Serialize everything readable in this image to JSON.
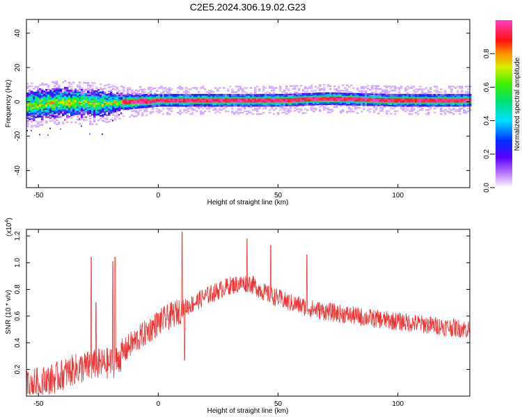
{
  "title": "C2E5.2024.306.19.02.G23",
  "colorbar": {
    "label": "Normalized spectral amplitude",
    "ticks": [
      "0.0",
      "0.2",
      "0.4",
      "0.6",
      "0.8"
    ],
    "range": [
      0,
      1
    ]
  },
  "chart_data": [
    {
      "type": "heatmap",
      "xlabel": "Height of straight line (km)",
      "ylabel": "Frequency (Hz)",
      "xlim": [
        -55,
        130
      ],
      "ylim": [
        -50,
        48
      ],
      "xticks": [
        -50,
        0,
        50,
        100
      ],
      "yticks": [
        -40,
        -20,
        0,
        20,
        40
      ],
      "xtick_labels": [
        "-50",
        "0",
        "50",
        "100"
      ],
      "ytick_labels": [
        "-40",
        "-20",
        "0",
        "20",
        "40"
      ],
      "band_center_hz": [
        {
          "x": -55,
          "y": -2
        },
        {
          "x": -40,
          "y": 0
        },
        {
          "x": -25,
          "y": -1
        },
        {
          "x": -15,
          "y": 0
        },
        {
          "x": 0,
          "y": 1
        },
        {
          "x": 25,
          "y": 1
        },
        {
          "x": 50,
          "y": 1
        },
        {
          "x": 70,
          "y": 2
        },
        {
          "x": 100,
          "y": 1
        },
        {
          "x": 130,
          "y": 1
        }
      ],
      "band_halfwidth_hz": [
        {
          "x": -55,
          "y": 9
        },
        {
          "x": -25,
          "y": 8
        },
        {
          "x": -15,
          "y": 5
        },
        {
          "x": 0,
          "y": 4
        },
        {
          "x": 130,
          "y": 4
        }
      ]
    },
    {
      "type": "line",
      "xlabel": "Height of straight line (km)",
      "ylabel": "SNR (10 * v/v)",
      "scale_note": "(x10",
      "scale_exp": "4",
      "xlim": [
        -55,
        130
      ],
      "ylim": [
        0,
        1.25
      ],
      "xticks": [
        -50,
        0,
        50,
        100
      ],
      "yticks": [
        0.2,
        0.4,
        0.6,
        0.8,
        1.0,
        1.2
      ],
      "xtick_labels": [
        "-50",
        "0",
        "50",
        "100"
      ],
      "ytick_labels": [
        "0.2",
        "0.4",
        "0.6",
        "0.8",
        "1.0",
        "1.2"
      ],
      "series": [
        {
          "color": "#ee3333",
          "trend": [
            {
              "x": -55,
              "y": 0.08
            },
            {
              "x": -45,
              "y": 0.12
            },
            {
              "x": -35,
              "y": 0.2
            },
            {
              "x": -25,
              "y": 0.24
            },
            {
              "x": -18,
              "y": 0.25
            },
            {
              "x": -12,
              "y": 0.38
            },
            {
              "x": 0,
              "y": 0.55
            },
            {
              "x": 10,
              "y": 0.65
            },
            {
              "x": 20,
              "y": 0.75
            },
            {
              "x": 30,
              "y": 0.83
            },
            {
              "x": 38,
              "y": 0.85
            },
            {
              "x": 45,
              "y": 0.77
            },
            {
              "x": 55,
              "y": 0.7
            },
            {
              "x": 65,
              "y": 0.65
            },
            {
              "x": 75,
              "y": 0.62
            },
            {
              "x": 90,
              "y": 0.58
            },
            {
              "x": 105,
              "y": 0.55
            },
            {
              "x": 120,
              "y": 0.52
            },
            {
              "x": 130,
              "y": 0.5
            }
          ],
          "peaks": [
            {
              "x": -28,
              "y": 1.04
            },
            {
              "x": -26,
              "y": 0.7
            },
            {
              "x": -19,
              "y": 1.01
            },
            {
              "x": -18,
              "y": 1.04
            },
            {
              "x": 10,
              "y": 1.23
            },
            {
              "x": 11,
              "y": 0.27
            },
            {
              "x": 37,
              "y": 1.18
            },
            {
              "x": 47,
              "y": 1.13
            },
            {
              "x": 62,
              "y": 1.06
            }
          ]
        }
      ]
    }
  ]
}
